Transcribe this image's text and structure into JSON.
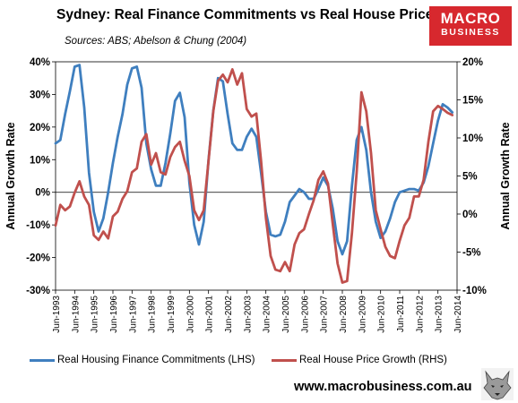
{
  "header": {
    "title": "Sydney: Real Finance Commitments vs Real House Prices",
    "subtitle": "Sources: ABS; Abelson & Chung (2004)"
  },
  "logo": {
    "line1": "MACRO",
    "line2": "BUSINESS",
    "color": "#d7282e"
  },
  "footer": {
    "url": "www.macrobusiness.com.au",
    "icon": "wolf-head-icon"
  },
  "chart_data": {
    "type": "line",
    "ylabel_left": "Annual Growth Rate",
    "ylabel_right": "Annual Growth Rate",
    "yticks_left": [
      "40%",
      "30%",
      "20%",
      "10%",
      "0%",
      "-10%",
      "-20%",
      "-30%"
    ],
    "yticks_right": [
      "20%",
      "15%",
      "10%",
      "5%",
      "0%",
      "-5%",
      "-10%"
    ],
    "ylim_left": [
      -30,
      40
    ],
    "ylim_right": [
      -10,
      20
    ],
    "xlim": [
      1993.5,
      2014.5
    ],
    "x_tick_labels": [
      "Jun-1993",
      "Jun-1994",
      "Jun-1995",
      "Jun-1996",
      "Jun-1997",
      "Jun-1998",
      "Jun-1999",
      "Jun-2000",
      "Jun-2001",
      "Jun-2002",
      "Jun-2003",
      "Jun-2004",
      "Jun-2005",
      "Jun-2006",
      "Jun-2007",
      "Jun-2008",
      "Jun-2009",
      "Jun-2010",
      "Jun-2011",
      "Jun-2012",
      "Jun-2013",
      "Jun-2014"
    ],
    "series": [
      {
        "name": "Real Housing Finance Commitments (LHS)",
        "axis": "left",
        "color": "#3f7fbf",
        "points": [
          [
            1993.5,
            15
          ],
          [
            1993.75,
            16
          ],
          [
            1994.0,
            24
          ],
          [
            1994.25,
            31
          ],
          [
            1994.5,
            38.5
          ],
          [
            1994.75,
            39
          ],
          [
            1995.0,
            26
          ],
          [
            1995.25,
            6
          ],
          [
            1995.5,
            -6
          ],
          [
            1995.75,
            -12
          ],
          [
            1996.0,
            -8
          ],
          [
            1996.25,
            0
          ],
          [
            1996.5,
            9
          ],
          [
            1996.75,
            17
          ],
          [
            1997.0,
            24
          ],
          [
            1997.25,
            33
          ],
          [
            1997.5,
            38
          ],
          [
            1997.75,
            38.5
          ],
          [
            1998.0,
            32
          ],
          [
            1998.25,
            15
          ],
          [
            1998.5,
            7
          ],
          [
            1998.75,
            2
          ],
          [
            1999.0,
            2
          ],
          [
            1999.25,
            9
          ],
          [
            1999.5,
            18
          ],
          [
            1999.75,
            28
          ],
          [
            2000.0,
            30.5
          ],
          [
            2000.25,
            23
          ],
          [
            2000.5,
            3
          ],
          [
            2000.75,
            -10
          ],
          [
            2001.0,
            -16
          ],
          [
            2001.25,
            -9
          ],
          [
            2001.5,
            10
          ],
          [
            2001.75,
            25
          ],
          [
            2002.0,
            35
          ],
          [
            2002.25,
            34
          ],
          [
            2002.5,
            24
          ],
          [
            2002.75,
            15
          ],
          [
            2003.0,
            13
          ],
          [
            2003.25,
            13
          ],
          [
            2003.5,
            17
          ],
          [
            2003.75,
            19.5
          ],
          [
            2004.0,
            17
          ],
          [
            2004.25,
            6
          ],
          [
            2004.5,
            -6
          ],
          [
            2004.75,
            -13
          ],
          [
            2005.0,
            -13.5
          ],
          [
            2005.25,
            -13
          ],
          [
            2005.5,
            -9
          ],
          [
            2005.75,
            -3
          ],
          [
            2006.0,
            -1
          ],
          [
            2006.25,
            1
          ],
          [
            2006.5,
            0
          ],
          [
            2006.75,
            -2
          ],
          [
            2007.0,
            -2
          ],
          [
            2007.25,
            1
          ],
          [
            2007.5,
            4.5
          ],
          [
            2007.75,
            2
          ],
          [
            2008.0,
            -5
          ],
          [
            2008.25,
            -15
          ],
          [
            2008.5,
            -19
          ],
          [
            2008.75,
            -15
          ],
          [
            2009.0,
            2
          ],
          [
            2009.25,
            16
          ],
          [
            2009.5,
            20
          ],
          [
            2009.75,
            13
          ],
          [
            2010.0,
            0
          ],
          [
            2010.25,
            -9
          ],
          [
            2010.5,
            -14
          ],
          [
            2010.75,
            -12
          ],
          [
            2011.0,
            -8
          ],
          [
            2011.25,
            -3
          ],
          [
            2011.5,
            0
          ],
          [
            2011.75,
            0.5
          ],
          [
            2012.0,
            1
          ],
          [
            2012.25,
            1
          ],
          [
            2012.5,
            0.5
          ],
          [
            2012.75,
            3
          ],
          [
            2013.0,
            8
          ],
          [
            2013.25,
            15
          ],
          [
            2013.5,
            22
          ],
          [
            2013.75,
            27
          ],
          [
            2014.0,
            26
          ],
          [
            2014.25,
            24.5
          ]
        ]
      },
      {
        "name": "Real House Price Growth (RHS)",
        "axis": "right",
        "color": "#c0504d",
        "points": [
          [
            1993.5,
            -1.5
          ],
          [
            1993.75,
            1.2
          ],
          [
            1994.0,
            0.5
          ],
          [
            1994.25,
            1
          ],
          [
            1994.5,
            2.8
          ],
          [
            1994.75,
            4.3
          ],
          [
            1995.0,
            2.3
          ],
          [
            1995.25,
            1.2
          ],
          [
            1995.5,
            -2.8
          ],
          [
            1995.75,
            -3.4
          ],
          [
            1996.0,
            -2.3
          ],
          [
            1996.25,
            -3.2
          ],
          [
            1996.5,
            -0.3
          ],
          [
            1996.75,
            0.3
          ],
          [
            1997.0,
            2
          ],
          [
            1997.25,
            3
          ],
          [
            1997.5,
            5.5
          ],
          [
            1997.75,
            6
          ],
          [
            1998.0,
            9.5
          ],
          [
            1998.25,
            10.5
          ],
          [
            1998.5,
            6.5
          ],
          [
            1998.75,
            8
          ],
          [
            1999.0,
            5.5
          ],
          [
            1999.25,
            5.2
          ],
          [
            1999.5,
            7.5
          ],
          [
            1999.75,
            8.8
          ],
          [
            2000.0,
            9.5
          ],
          [
            2000.25,
            7
          ],
          [
            2000.5,
            5
          ],
          [
            2000.75,
            0.5
          ],
          [
            2001.0,
            -0.8
          ],
          [
            2001.25,
            0.5
          ],
          [
            2001.5,
            7
          ],
          [
            2001.75,
            13.5
          ],
          [
            2002.0,
            17.5
          ],
          [
            2002.25,
            18.3
          ],
          [
            2002.5,
            17.3
          ],
          [
            2002.75,
            19
          ],
          [
            2003.0,
            17
          ],
          [
            2003.25,
            18.5
          ],
          [
            2003.5,
            13.8
          ],
          [
            2003.75,
            12.8
          ],
          [
            2004.0,
            13.2
          ],
          [
            2004.25,
            7
          ],
          [
            2004.5,
            -0.5
          ],
          [
            2004.75,
            -5.5
          ],
          [
            2005.0,
            -7.3
          ],
          [
            2005.25,
            -7.5
          ],
          [
            2005.5,
            -6.3
          ],
          [
            2005.75,
            -7.5
          ],
          [
            2006.0,
            -4
          ],
          [
            2006.25,
            -2.5
          ],
          [
            2006.5,
            -2
          ],
          [
            2006.75,
            0
          ],
          [
            2007.0,
            1.8
          ],
          [
            2007.25,
            4.5
          ],
          [
            2007.5,
            5.6
          ],
          [
            2007.75,
            4
          ],
          [
            2008.0,
            -1.3
          ],
          [
            2008.25,
            -6.5
          ],
          [
            2008.5,
            -9
          ],
          [
            2008.75,
            -8.8
          ],
          [
            2009.0,
            -2.5
          ],
          [
            2009.25,
            5.5
          ],
          [
            2009.5,
            16
          ],
          [
            2009.75,
            13.5
          ],
          [
            2010.0,
            8
          ],
          [
            2010.25,
            0.5
          ],
          [
            2010.5,
            -2
          ],
          [
            2010.75,
            -4.3
          ],
          [
            2011.0,
            -5.5
          ],
          [
            2011.25,
            -5.8
          ],
          [
            2011.5,
            -3.5
          ],
          [
            2011.75,
            -1.5
          ],
          [
            2012.0,
            -0.5
          ],
          [
            2012.25,
            2.3
          ],
          [
            2012.5,
            2.3
          ],
          [
            2012.75,
            4.5
          ],
          [
            2013.0,
            9.5
          ],
          [
            2013.25,
            13.5
          ],
          [
            2013.5,
            14.2
          ],
          [
            2013.75,
            13.8
          ],
          [
            2014.0,
            13.3
          ],
          [
            2014.25,
            13
          ]
        ]
      }
    ],
    "legend_position": "bottom",
    "grid": false
  }
}
